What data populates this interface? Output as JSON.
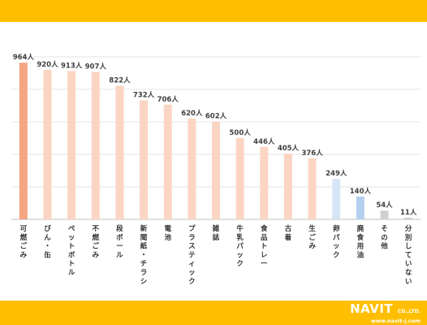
{
  "chart_data": {
    "type": "bar",
    "categories": [
      "可燃ごみ",
      "びん・缶",
      "ペットボトル",
      "不燃ごみ",
      "段ボール",
      "新聞紙・チラシ",
      "電池",
      "プラスティック",
      "雑誌",
      "牛乳パック",
      "食品トレー",
      "古着",
      "生ごみ",
      "卵パック",
      "廃食用油",
      "その他",
      "分別していない"
    ],
    "values": [
      964,
      920,
      913,
      907,
      822,
      732,
      706,
      620,
      602,
      500,
      446,
      405,
      376,
      249,
      140,
      54,
      11
    ],
    "value_labels": [
      "964人",
      "920人",
      "913人",
      "907人",
      "822人",
      "732人",
      "706人",
      "620人",
      "602人",
      "500人",
      "446人",
      "405人",
      "376人",
      "249人",
      "140人",
      "54人",
      "11人"
    ],
    "bar_colors": [
      "#F4A582",
      "#FBD5C3",
      "#FBD5C3",
      "#FBD5C3",
      "#FBD5C3",
      "#FBD5C3",
      "#FBD5C3",
      "#FBD5C3",
      "#FBD5C3",
      "#FBD5C3",
      "#FBD5C3",
      "#FBD5C3",
      "#FBD5C3",
      "#D5E5F5",
      "#B3D0EE",
      "#D0D0D0",
      "#D0D0D0"
    ],
    "ylim": [
      0,
      1000
    ],
    "grid": true,
    "title": "",
    "xlabel": "",
    "ylabel": ""
  },
  "brand": {
    "name": "NAVIT",
    "suffix": "CO.,LTD.",
    "url": "www.navit-j.com",
    "band_color": "#FFBF00"
  }
}
